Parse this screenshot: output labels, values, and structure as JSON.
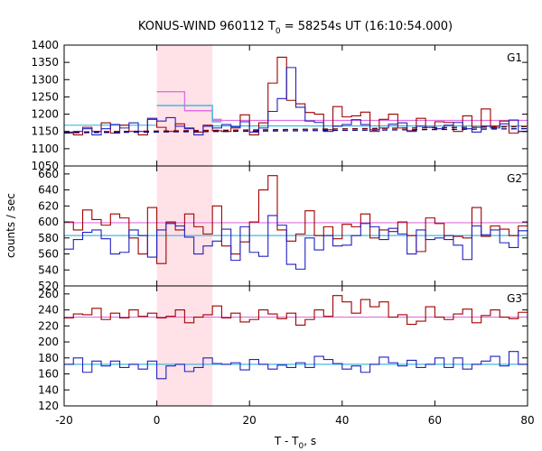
{
  "title": {
    "main": "KONUS-WIND 960112 T",
    "sub": "0",
    "rest": " = 58254s UT (16:10:54.000)"
  },
  "colors": {
    "red": "#a00000",
    "blue": "#2020c0",
    "pink": "#e070e0",
    "cyan": "#40b8e0",
    "shade": "#ffe2e8",
    "dashed_red": "#800000",
    "dashed_blue": "#000080"
  },
  "chart_data": {
    "type": "line",
    "xlabel": "T - T",
    "xlabel_sub": "0",
    "xlabel_tail": ", s",
    "ylabel": "counts / sec",
    "xlim": [
      -20,
      80
    ],
    "xticks": [
      -20,
      0,
      20,
      40,
      60,
      80
    ],
    "shaded_interval": [
      0,
      12
    ],
    "bin_width": 2,
    "panels": [
      {
        "name": "G1",
        "ylim": [
          1050,
          1400
        ],
        "yticks": [
          1050,
          1100,
          1150,
          1200,
          1250,
          1300,
          1350,
          1400
        ],
        "series": [
          {
            "color": "red",
            "x_start": -20,
            "values": [
              1148,
              1140,
              1162,
              1150,
              1175,
              1145,
              1168,
              1150,
              1140,
              1185,
              1162,
              1150,
              1172,
              1160,
              1148,
              1168,
              1152,
              1150,
              1160,
              1198,
              1140,
              1175,
              1290,
              1365,
              1240,
              1230,
              1205,
              1200,
              1155,
              1222,
              1192,
              1195,
              1206,
              1150,
              1185,
              1200,
              1160,
              1152,
              1188,
              1162,
              1178,
              1176,
              1150,
              1195,
              1162,
              1215,
              1165,
              1180,
              1145,
              1150,
              1208,
              1190,
              1160,
              1180,
              1172,
              1150
            ]
          },
          {
            "color": "blue",
            "x_start": -20,
            "values": [
              1145,
              1150,
              1158,
              1140,
              1158,
              1170,
              1160,
              1175,
              1150,
              1188,
              1180,
              1190,
              1165,
              1158,
              1140,
              1165,
              1160,
              1170,
              1163,
              1178,
              1148,
              1160,
              1208,
              1245,
              1335,
              1220,
              1180,
              1176,
              1150,
              1165,
              1170,
              1184,
              1170,
              1155,
              1160,
              1171,
              1175,
              1150,
              1165,
              1162,
              1158,
              1168,
              1176,
              1158,
              1148,
              1165,
              1160,
              1172,
              1183,
              1150,
              1160,
              1160,
              1168,
              1160,
              1170,
              1158
            ]
          }
        ],
        "steps": [
          {
            "color": "pink",
            "x": [
              0,
              6,
              12
            ],
            "y": [
              1265,
              1210,
              1185
            ]
          },
          {
            "color": "cyan",
            "x": [
              0,
              6,
              12
            ],
            "y": [
              1225,
              1225,
              1178
            ]
          }
        ],
        "hlines": [
          {
            "color": "pink",
            "y": 1182,
            "from": 12,
            "to": 80
          },
          {
            "color": "cyan",
            "y": 1168,
            "from": -20,
            "to": 0
          },
          {
            "color": "cyan",
            "y": 1166,
            "from": 12,
            "to": 80
          }
        ],
        "dashed": [
          {
            "color": "dashed_red",
            "y0": 1148,
            "y1": 1164
          },
          {
            "color": "dashed_blue",
            "y0": 1146,
            "y1": 1158
          }
        ]
      },
      {
        "name": "G2",
        "ylim": [
          520,
          670
        ],
        "yticks": [
          520,
          540,
          560,
          580,
          600,
          620,
          640,
          660
        ],
        "series": [
          {
            "color": "red",
            "x_start": -20,
            "values": [
              600,
              590,
              615,
              603,
              596,
              610,
              605,
              580,
              560,
              618,
              548,
              600,
              590,
              610,
              594,
              585,
              620,
              570,
              560,
              575,
              600,
              640,
              658,
              590,
              576,
              585,
              614,
              583,
              594,
              579,
              597,
              594,
              610,
              580,
              590,
              588,
              600,
              583,
              563,
              605,
              598,
              578,
              582,
              580,
              618,
              582,
              595,
              591,
              583,
              595,
              600,
              600,
              596,
              620,
              635,
              563
            ]
          },
          {
            "color": "blue",
            "x_start": -20,
            "values": [
              566,
              578,
              587,
              590,
              579,
              560,
              562,
              590,
              583,
              556,
              590,
              598,
              595,
              581,
              560,
              570,
              576,
              591,
              552,
              594,
              562,
              557,
              608,
              596,
              547,
              541,
              580,
              565,
              583,
              570,
              571,
              583,
              598,
              594,
              578,
              592,
              585,
              560,
              590,
              578,
              580,
              583,
              571,
              553,
              595,
              584,
              590,
              574,
              568,
              589,
              584,
              572,
              558,
              551,
              578,
              593
            ]
          }
        ],
        "hlines": [
          {
            "color": "pink",
            "y": 599,
            "from": -20,
            "to": 80
          },
          {
            "color": "cyan",
            "y": 583,
            "from": -20,
            "to": 80
          }
        ]
      },
      {
        "name": "G3",
        "ylim": [
          120,
          270
        ],
        "yticks": [
          120,
          140,
          160,
          180,
          200,
          220,
          240,
          260
        ],
        "series": [
          {
            "color": "red",
            "x_start": -20,
            "values": [
              230,
              235,
              234,
              242,
              228,
              236,
              230,
              240,
              232,
              236,
              230,
              232,
              240,
              224,
              231,
              234,
              245,
              230,
              236,
              225,
              228,
              240,
              235,
              229,
              236,
              221,
              228,
              240,
              232,
              258,
              250,
              236,
              253,
              244,
              250,
              231,
              234,
              222,
              226,
              244,
              231,
              228,
              235,
              241,
              224,
              233,
              240,
              231,
              229,
              237,
              225,
              228,
              232,
              218,
              240,
              228
            ]
          },
          {
            "color": "blue",
            "x_start": -20,
            "values": [
              172,
              180,
              162,
              176,
              170,
              176,
              168,
              172,
              166,
              176,
              154,
              170,
              172,
              163,
              168,
              180,
              173,
              172,
              174,
              165,
              178,
              172,
              166,
              171,
              168,
              174,
              168,
              182,
              178,
              173,
              166,
              170,
              162,
              172,
              181,
              174,
              170,
              177,
              168,
              172,
              180,
              168,
              180,
              166,
              172,
              176,
              182,
              170,
              188,
              172,
              161,
              174,
              178,
              168,
              172,
              176
            ]
          }
        ],
        "hlines": [
          {
            "color": "pink",
            "y": 231,
            "from": -20,
            "to": 80
          },
          {
            "color": "cyan",
            "y": 172,
            "from": -20,
            "to": 80
          }
        ]
      }
    ]
  }
}
